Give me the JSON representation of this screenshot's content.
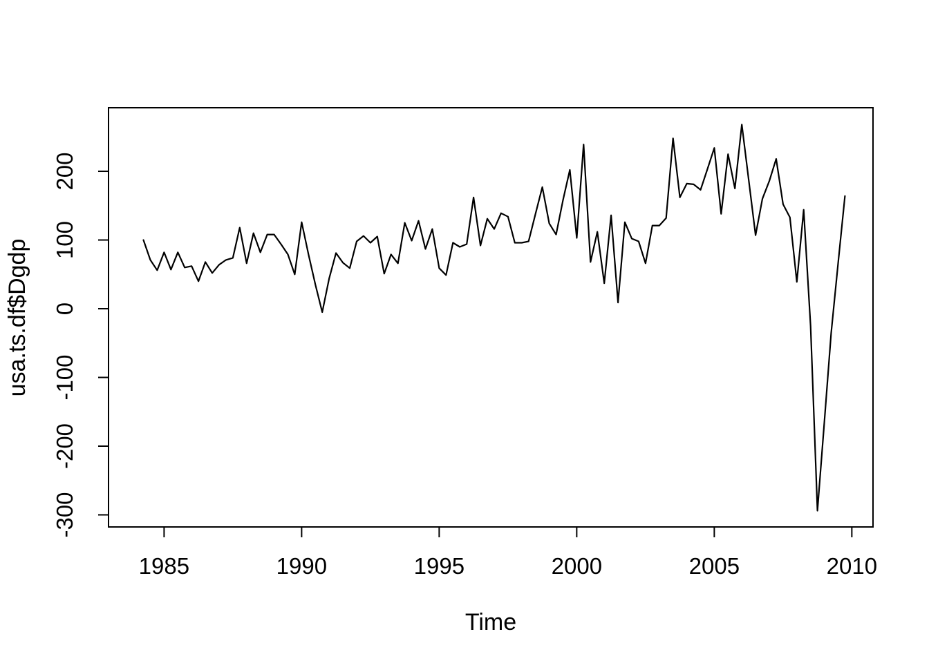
{
  "figure": {
    "kind": "R base graphics line plot",
    "background": "#ffffff",
    "foreground": "#000000"
  },
  "axes": {
    "xlabel": "Time",
    "ylabel": "usa.ts.df$Dgdp",
    "x_ticks": [
      1985,
      1990,
      1995,
      2000,
      2005,
      2010
    ],
    "y_ticks": [
      -300,
      -200,
      -100,
      0,
      100,
      200
    ]
  },
  "chart_data": {
    "type": "line",
    "title": "",
    "xlabel": "Time",
    "ylabel": "usa.ts.df$Dgdp",
    "series_name": "usa.ts.df$Dgdp",
    "line_color": "#000000",
    "grid": false,
    "legend": "none",
    "x_start": 1984.25,
    "x_step": 0.25,
    "xlim": [
      1982.98,
      2010.77
    ],
    "ylim": [
      -317.6,
      292.5
    ],
    "values": [
      100,
      71,
      56,
      82,
      57,
      82,
      60,
      62,
      40,
      68,
      52,
      64,
      71,
      74,
      118,
      66,
      110,
      82,
      108,
      108,
      94,
      79,
      50,
      126,
      79,
      35,
      -5,
      44,
      81,
      67,
      59,
      98,
      106,
      96,
      105,
      51,
      79,
      66,
      125,
      99,
      128,
      87,
      116,
      59,
      49,
      96,
      90,
      94,
      162,
      92,
      131,
      116,
      139,
      134,
      96,
      96,
      98,
      138,
      177,
      124,
      108,
      158,
      202,
      103,
      239,
      68,
      112,
      37,
      136,
      9,
      126,
      102,
      98,
      66,
      121,
      121,
      132,
      248,
      162,
      182,
      181,
      173,
      203,
      234,
      138,
      225,
      175,
      268,
      188,
      107,
      160,
      186,
      218,
      152,
      133,
      39,
      144,
      -25,
      -294,
      -165,
      -35,
      66,
      164
    ]
  }
}
